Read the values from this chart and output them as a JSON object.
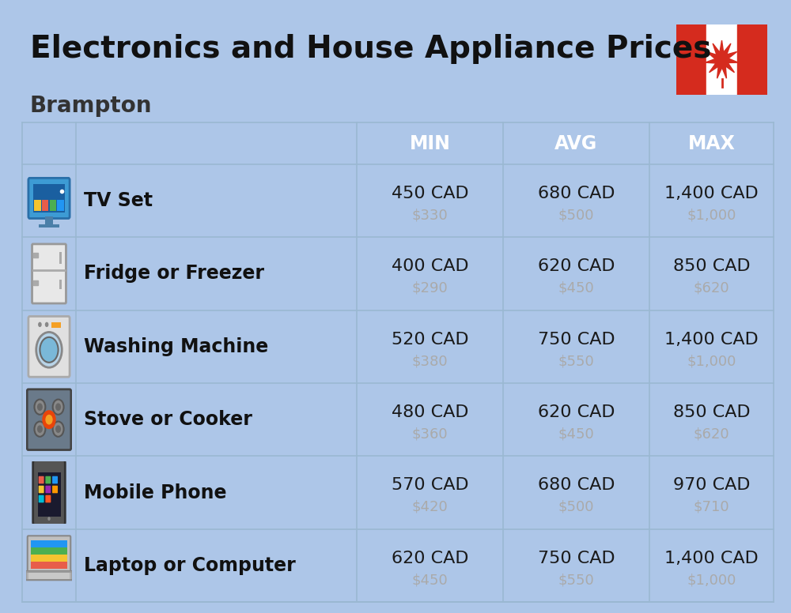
{
  "title": "Electronics and House Appliance Prices",
  "subtitle": "Brampton",
  "bg_color": "#adc6e8",
  "header_color": "#4e8bc4",
  "header_text_color": "#ffffff",
  "row_bg_color": "#c8d9ed",
  "divider_color": "#9ab5d0",
  "col_headers": [
    "MIN",
    "AVG",
    "MAX"
  ],
  "items": [
    {
      "name": "TV Set",
      "min_cad": "450 CAD",
      "min_usd": "$330",
      "avg_cad": "680 CAD",
      "avg_usd": "$500",
      "max_cad": "1,400 CAD",
      "max_usd": "$1,000"
    },
    {
      "name": "Fridge or Freezer",
      "min_cad": "400 CAD",
      "min_usd": "$290",
      "avg_cad": "620 CAD",
      "avg_usd": "$450",
      "max_cad": "850 CAD",
      "max_usd": "$620"
    },
    {
      "name": "Washing Machine",
      "min_cad": "520 CAD",
      "min_usd": "$380",
      "avg_cad": "750 CAD",
      "avg_usd": "$550",
      "max_cad": "1,400 CAD",
      "max_usd": "$1,000"
    },
    {
      "name": "Stove or Cooker",
      "min_cad": "480 CAD",
      "min_usd": "$360",
      "avg_cad": "620 CAD",
      "avg_usd": "$450",
      "max_cad": "850 CAD",
      "max_usd": "$620"
    },
    {
      "name": "Mobile Phone",
      "min_cad": "570 CAD",
      "min_usd": "$420",
      "avg_cad": "680 CAD",
      "avg_usd": "$500",
      "max_cad": "970 CAD",
      "max_usd": "$710"
    },
    {
      "name": "Laptop or Computer",
      "min_cad": "620 CAD",
      "min_usd": "$450",
      "avg_cad": "750 CAD",
      "avg_usd": "$550",
      "max_cad": "1,400 CAD",
      "max_usd": "$1,000"
    }
  ],
  "title_fontsize": 28,
  "subtitle_fontsize": 20,
  "header_fontsize": 17,
  "name_fontsize": 17,
  "value_fontsize": 16,
  "sub_value_fontsize": 13,
  "usd_color": "#aaaaaa",
  "name_color": "#111111",
  "value_color": "#1a1a1a",
  "flag_red": "#D52B1E",
  "flag_white": "#ffffff",
  "line_color": "#9ab8d2"
}
